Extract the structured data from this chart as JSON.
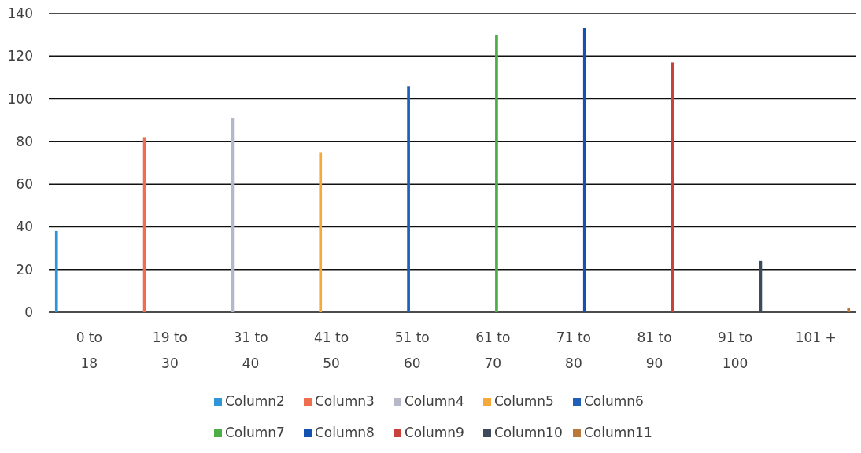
{
  "chart_data": {
    "type": "bar",
    "categories": [
      "0 to 18",
      "19 to 30",
      "31 to 40",
      "41 to 50",
      "51 to 60",
      "61 to 70",
      "71 to 80",
      "81 to 90",
      "91 to 100",
      "101 +"
    ],
    "series": [
      {
        "name": "Column2",
        "color": "#2e95d6",
        "values": [
          38,
          null,
          null,
          null,
          null,
          null,
          null,
          null,
          null,
          null
        ]
      },
      {
        "name": "Column3",
        "color": "#ee6e4f",
        "values": [
          null,
          82,
          null,
          null,
          null,
          null,
          null,
          null,
          null,
          null
        ]
      },
      {
        "name": "Column4",
        "color": "#b4b8c8",
        "values": [
          null,
          null,
          91,
          null,
          null,
          null,
          null,
          null,
          null,
          null
        ]
      },
      {
        "name": "Column5",
        "color": "#f5a83b",
        "values": [
          null,
          null,
          null,
          75,
          null,
          null,
          null,
          null,
          null,
          null
        ]
      },
      {
        "name": "Column6",
        "color": "#1f5fb8",
        "values": [
          null,
          null,
          null,
          null,
          106,
          null,
          null,
          null,
          null,
          null
        ]
      },
      {
        "name": "Column7",
        "color": "#4caf45",
        "values": [
          null,
          null,
          null,
          null,
          null,
          130,
          null,
          null,
          null,
          null
        ]
      },
      {
        "name": "Column8",
        "color": "#1452b0",
        "values": [
          null,
          null,
          null,
          null,
          null,
          null,
          133,
          null,
          null,
          null
        ]
      },
      {
        "name": "Column9",
        "color": "#c8413a",
        "values": [
          null,
          null,
          null,
          null,
          null,
          null,
          null,
          117,
          null,
          null
        ]
      },
      {
        "name": "Column10",
        "color": "#3d4a5a",
        "values": [
          null,
          null,
          null,
          null,
          null,
          null,
          null,
          null,
          24,
          null
        ]
      },
      {
        "name": "Column11",
        "color": "#b9773a",
        "values": [
          null,
          null,
          null,
          null,
          null,
          null,
          null,
          null,
          null,
          2
        ]
      }
    ],
    "ylim": [
      0,
      140
    ],
    "yticks": [
      0,
      20,
      40,
      60,
      80,
      100,
      120,
      140
    ],
    "grid": "y",
    "legend": "bottom"
  }
}
